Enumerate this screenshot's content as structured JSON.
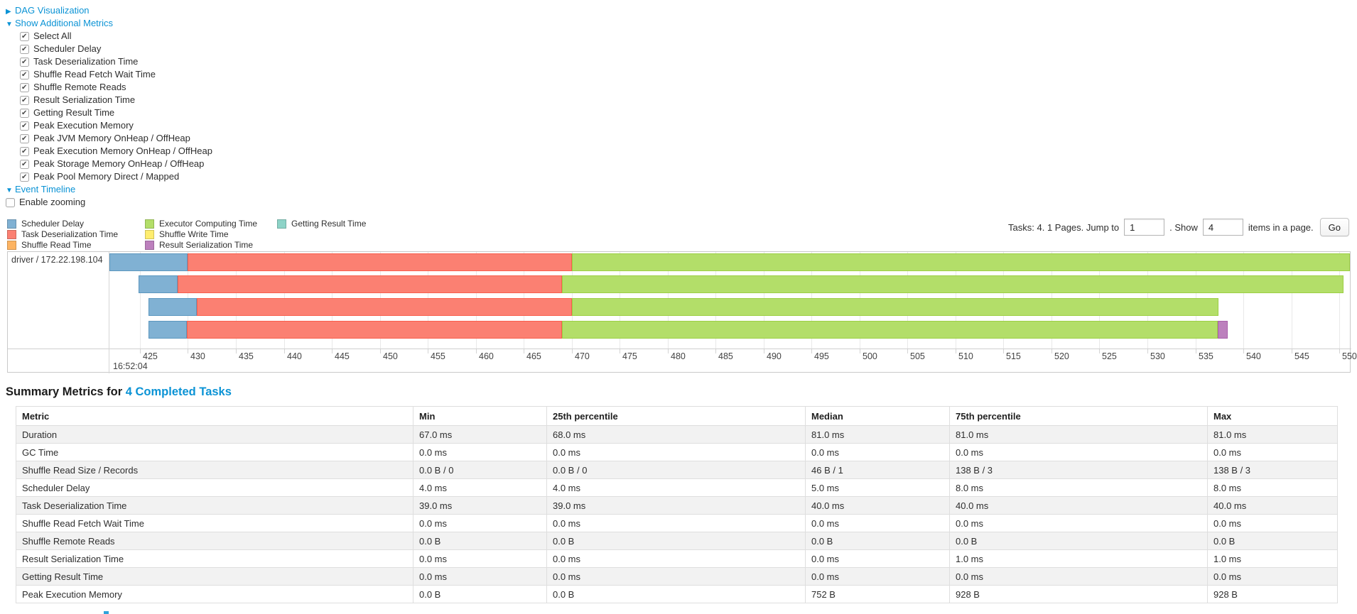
{
  "colors": {
    "link": "#0b93d5",
    "grid": "#e9e9e9",
    "segments": {
      "scheduler_delay": {
        "fill": "#80B1D3",
        "border": "#5c97bf"
      },
      "task_deserialization": {
        "fill": "#FB8072",
        "border": "#f95e4c"
      },
      "shuffle_read": {
        "fill": "#FDB462",
        "border": "#fba13a"
      },
      "executor_computing": {
        "fill": "#B3DE69",
        "border": "#9ccf44"
      },
      "shuffle_write": {
        "fill": "#FFED6F",
        "border": "#f5de3c"
      },
      "result_serialization": {
        "fill": "#BC80BD",
        "border": "#a95faa"
      },
      "getting_result": {
        "fill": "#8DD3C7",
        "border": "#69c4b4"
      }
    }
  },
  "controls": {
    "dag": {
      "icon": "▶",
      "label": "DAG Visualization"
    },
    "additional_metrics": {
      "icon": "▼",
      "label": "Show Additional Metrics"
    },
    "checkboxes": [
      {
        "label": "Select All",
        "checked": true
      },
      {
        "label": "Scheduler Delay",
        "checked": true
      },
      {
        "label": "Task Deserialization Time",
        "checked": true
      },
      {
        "label": "Shuffle Read Fetch Wait Time",
        "checked": true
      },
      {
        "label": "Shuffle Remote Reads",
        "checked": true
      },
      {
        "label": "Result Serialization Time",
        "checked": true
      },
      {
        "label": "Getting Result Time",
        "checked": true
      },
      {
        "label": "Peak Execution Memory",
        "checked": true
      },
      {
        "label": "Peak JVM Memory OnHeap / OffHeap",
        "checked": true
      },
      {
        "label": "Peak Execution Memory OnHeap / OffHeap",
        "checked": true
      },
      {
        "label": "Peak Storage Memory OnHeap / OffHeap",
        "checked": true
      },
      {
        "label": "Peak Pool Memory Direct / Mapped",
        "checked": true
      }
    ],
    "event_timeline": {
      "icon": "▼",
      "label": "Event Timeline"
    },
    "enable_zooming": {
      "label": "Enable zooming",
      "checked": false
    }
  },
  "legend": {
    "columns": [
      [
        {
          "label": "Scheduler Delay",
          "color_key": "scheduler_delay"
        },
        {
          "label": "Task Deserialization Time",
          "color_key": "task_deserialization"
        },
        {
          "label": "Shuffle Read Time",
          "color_key": "shuffle_read"
        }
      ],
      [
        {
          "label": "Executor Computing Time",
          "color_key": "executor_computing"
        },
        {
          "label": "Shuffle Write Time",
          "color_key": "shuffle_write"
        },
        {
          "label": "Result Serialization Time",
          "color_key": "result_serialization"
        }
      ],
      [
        {
          "label": "Getting Result Time",
          "color_key": "getting_result"
        }
      ]
    ]
  },
  "pagination": {
    "tasks_text": "Tasks: 4. 1 Pages. Jump to",
    "jump_value": "1",
    "show_text": ". Show",
    "show_value": "4",
    "items_text": "items in a page.",
    "go_label": "Go"
  },
  "chart_data": {
    "type": "timeline",
    "row_label": "driver / 172.22.198.104",
    "axis": {
      "view_start": 421.82,
      "view_end": 551.25,
      "ticks": [
        425,
        430,
        435,
        440,
        445,
        450,
        455,
        460,
        465,
        470,
        475,
        480,
        485,
        490,
        495,
        500,
        505,
        510,
        515,
        520,
        525,
        530,
        535,
        540,
        545,
        550
      ],
      "major_label": "16:52:04"
    },
    "tasks": [
      {
        "segments": [
          {
            "type": "scheduler_delay",
            "start": 421.82,
            "end": 429.95
          },
          {
            "type": "task_deserialization",
            "start": 429.95,
            "end": 470.0
          },
          {
            "type": "executor_computing",
            "start": 470.0,
            "end": 551.1
          }
        ]
      },
      {
        "segments": [
          {
            "type": "scheduler_delay",
            "start": 424.85,
            "end": 428.9
          },
          {
            "type": "task_deserialization",
            "start": 428.9,
            "end": 469.0
          },
          {
            "type": "executor_computing",
            "start": 469.0,
            "end": 550.45
          }
        ]
      },
      {
        "segments": [
          {
            "type": "scheduler_delay",
            "start": 425.9,
            "end": 430.9
          },
          {
            "type": "task_deserialization",
            "start": 430.9,
            "end": 470.0
          },
          {
            "type": "executor_computing",
            "start": 470.0,
            "end": 537.4
          }
        ]
      },
      {
        "segments": [
          {
            "type": "scheduler_delay",
            "start": 425.9,
            "end": 429.9
          },
          {
            "type": "task_deserialization",
            "start": 429.9,
            "end": 469.0
          },
          {
            "type": "executor_computing",
            "start": 469.0,
            "end": 537.3
          },
          {
            "type": "result_serialization",
            "start": 537.3,
            "end": 538.4
          }
        ]
      }
    ]
  },
  "summary": {
    "title_prefix": "Summary Metrics for",
    "link_label": "4 Completed Tasks",
    "table": {
      "headers": [
        "Metric",
        "Min",
        "25th percentile",
        "Median",
        "75th percentile",
        "Max"
      ],
      "rows": [
        {
          "metric": "Duration",
          "values": [
            "67.0 ms",
            "68.0 ms",
            "81.0 ms",
            "81.0 ms",
            "81.0 ms"
          ]
        },
        {
          "metric": "GC Time",
          "values": [
            "0.0 ms",
            "0.0 ms",
            "0.0 ms",
            "0.0 ms",
            "0.0 ms"
          ]
        },
        {
          "metric": "Shuffle Read Size / Records",
          "values": [
            "0.0 B / 0",
            "0.0 B / 0",
            "46 B / 1",
            "138 B / 3",
            "138 B / 3"
          ]
        },
        {
          "metric": "Scheduler Delay",
          "values": [
            "4.0 ms",
            "4.0 ms",
            "5.0 ms",
            "8.0 ms",
            "8.0 ms"
          ]
        },
        {
          "metric": "Task Deserialization Time",
          "values": [
            "39.0 ms",
            "39.0 ms",
            "40.0 ms",
            "40.0 ms",
            "40.0 ms"
          ]
        },
        {
          "metric": "Shuffle Read Fetch Wait Time",
          "values": [
            "0.0 ms",
            "0.0 ms",
            "0.0 ms",
            "0.0 ms",
            "0.0 ms"
          ]
        },
        {
          "metric": "Shuffle Remote Reads",
          "values": [
            "0.0 B",
            "0.0 B",
            "0.0 B",
            "0.0 B",
            "0.0 B"
          ]
        },
        {
          "metric": "Result Serialization Time",
          "values": [
            "0.0 ms",
            "0.0 ms",
            "0.0 ms",
            "1.0 ms",
            "1.0 ms"
          ]
        },
        {
          "metric": "Getting Result Time",
          "values": [
            "0.0 ms",
            "0.0 ms",
            "0.0 ms",
            "0.0 ms",
            "0.0 ms"
          ]
        },
        {
          "metric": "Peak Execution Memory",
          "values": [
            "0.0 B",
            "0.0 B",
            "752 B",
            "928 B",
            "928 B"
          ]
        }
      ]
    }
  }
}
